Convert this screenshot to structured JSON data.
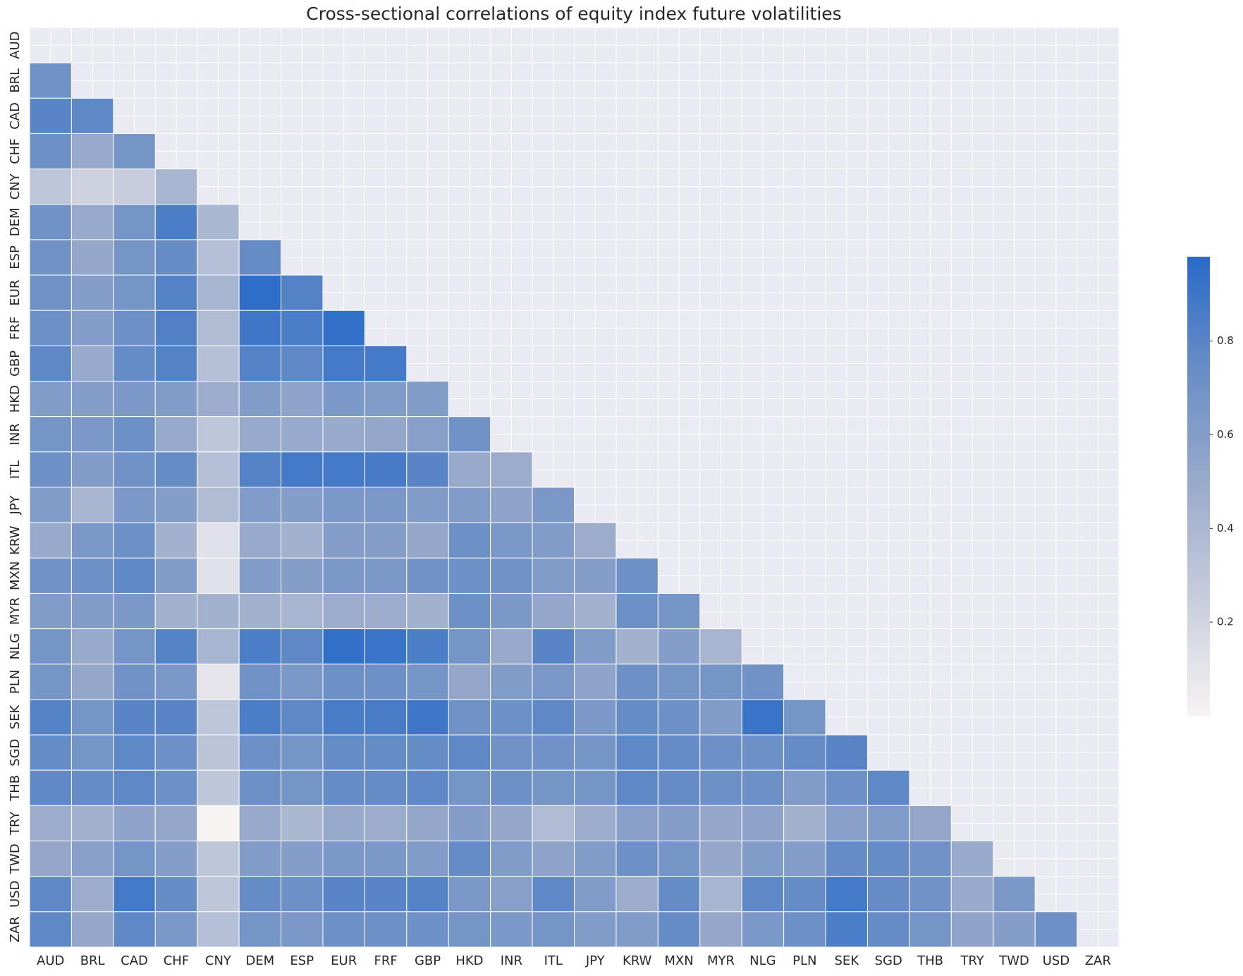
{
  "chart_data": {
    "type": "heatmap",
    "title": "Cross-sectional correlations of equity index future volatilities",
    "x_labels": [
      "AUD",
      "BRL",
      "CAD",
      "CHF",
      "CNY",
      "DEM",
      "ESP",
      "EUR",
      "FRF",
      "GBP",
      "HKD",
      "INR",
      "ITL",
      "JPY",
      "KRW",
      "MXN",
      "MYR",
      "NLG",
      "PLN",
      "SEK",
      "SGD",
      "THB",
      "TRY",
      "TWD",
      "USD",
      "ZAR"
    ],
    "y_labels": [
      "AUD",
      "BRL",
      "CAD",
      "CHF",
      "CNY",
      "DEM",
      "ESP",
      "EUR",
      "FRF",
      "GBP",
      "HKD",
      "INR",
      "ITL",
      "JPY",
      "KRW",
      "MXN",
      "MYR",
      "NLG",
      "PLN",
      "SEK",
      "SGD",
      "THB",
      "TRY",
      "TWD",
      "USD",
      "ZAR"
    ],
    "values": [
      [],
      [
        0.7
      ],
      [
        0.8,
        0.78
      ],
      [
        0.72,
        0.5,
        0.68
      ],
      [
        0.3,
        0.22,
        0.25,
        0.42
      ],
      [
        0.7,
        0.5,
        0.68,
        0.85,
        0.4
      ],
      [
        0.7,
        0.52,
        0.68,
        0.75,
        0.35,
        0.75
      ],
      [
        0.7,
        0.6,
        0.68,
        0.82,
        0.42,
        0.96,
        0.82
      ],
      [
        0.72,
        0.6,
        0.72,
        0.83,
        0.38,
        0.9,
        0.85,
        0.95
      ],
      [
        0.78,
        0.5,
        0.75,
        0.82,
        0.35,
        0.82,
        0.78,
        0.88,
        0.88
      ],
      [
        0.62,
        0.6,
        0.65,
        0.62,
        0.48,
        0.62,
        0.55,
        0.65,
        0.62,
        0.62
      ],
      [
        0.68,
        0.65,
        0.72,
        0.5,
        0.3,
        0.5,
        0.5,
        0.5,
        0.52,
        0.58,
        0.7
      ],
      [
        0.72,
        0.62,
        0.7,
        0.75,
        0.35,
        0.82,
        0.88,
        0.88,
        0.87,
        0.8,
        0.5,
        0.48
      ],
      [
        0.62,
        0.42,
        0.65,
        0.6,
        0.38,
        0.62,
        0.6,
        0.65,
        0.65,
        0.62,
        0.62,
        0.55,
        0.65
      ],
      [
        0.5,
        0.65,
        0.72,
        0.45,
        0.12,
        0.5,
        0.45,
        0.6,
        0.6,
        0.52,
        0.72,
        0.65,
        0.62,
        0.48
      ],
      [
        0.7,
        0.72,
        0.78,
        0.62,
        0.12,
        0.62,
        0.6,
        0.65,
        0.65,
        0.7,
        0.72,
        0.7,
        0.62,
        0.6,
        0.72
      ],
      [
        0.62,
        0.62,
        0.65,
        0.45,
        0.45,
        0.45,
        0.42,
        0.48,
        0.48,
        0.45,
        0.72,
        0.65,
        0.52,
        0.45,
        0.72,
        0.68
      ],
      [
        0.68,
        0.5,
        0.68,
        0.82,
        0.42,
        0.85,
        0.78,
        0.95,
        0.92,
        0.85,
        0.68,
        0.5,
        0.8,
        0.62,
        0.45,
        0.6,
        0.42
      ],
      [
        0.68,
        0.52,
        0.7,
        0.65,
        0.1,
        0.7,
        0.65,
        0.72,
        0.72,
        0.68,
        0.52,
        0.62,
        0.65,
        0.55,
        0.72,
        0.68,
        0.68,
        0.7
      ],
      [
        0.82,
        0.68,
        0.8,
        0.8,
        0.3,
        0.85,
        0.78,
        0.86,
        0.86,
        0.9,
        0.7,
        0.72,
        0.78,
        0.65,
        0.75,
        0.72,
        0.62,
        0.92,
        0.68
      ],
      [
        0.75,
        0.68,
        0.78,
        0.72,
        0.32,
        0.72,
        0.68,
        0.75,
        0.75,
        0.75,
        0.78,
        0.7,
        0.7,
        0.68,
        0.78,
        0.75,
        0.72,
        0.72,
        0.75,
        0.8
      ],
      [
        0.78,
        0.75,
        0.78,
        0.72,
        0.3,
        0.72,
        0.68,
        0.75,
        0.75,
        0.78,
        0.68,
        0.72,
        0.68,
        0.68,
        0.78,
        0.75,
        0.72,
        0.72,
        0.62,
        0.72,
        0.78
      ],
      [
        0.48,
        0.45,
        0.55,
        0.52,
        0.0,
        0.5,
        0.4,
        0.5,
        0.48,
        0.52,
        0.6,
        0.52,
        0.38,
        0.48,
        0.58,
        0.6,
        0.52,
        0.55,
        0.45,
        0.58,
        0.62,
        0.52
      ],
      [
        0.52,
        0.58,
        0.68,
        0.6,
        0.3,
        0.62,
        0.6,
        0.65,
        0.65,
        0.62,
        0.75,
        0.62,
        0.55,
        0.62,
        0.72,
        0.68,
        0.52,
        0.62,
        0.6,
        0.75,
        0.75,
        0.7,
        0.5
      ],
      [
        0.78,
        0.48,
        0.88,
        0.75,
        0.3,
        0.75,
        0.72,
        0.8,
        0.8,
        0.82,
        0.65,
        0.58,
        0.78,
        0.62,
        0.48,
        0.75,
        0.42,
        0.78,
        0.75,
        0.88,
        0.75,
        0.7,
        0.5,
        0.65
      ],
      [
        0.78,
        0.52,
        0.78,
        0.65,
        0.35,
        0.68,
        0.65,
        0.72,
        0.72,
        0.72,
        0.68,
        0.65,
        0.68,
        0.62,
        0.62,
        0.75,
        0.52,
        0.65,
        0.72,
        0.85,
        0.75,
        0.68,
        0.55,
        0.6,
        0.72
      ]
    ],
    "clim": [
      0,
      0.98
    ],
    "cticks": [
      0.2,
      0.4,
      0.6,
      0.8
    ],
    "colormap": [
      "#f7f3f3",
      "#c9cedd",
      "#9aabcb",
      "#6a8ec6",
      "#2a6bc8"
    ],
    "background": "#eaeaf2"
  }
}
